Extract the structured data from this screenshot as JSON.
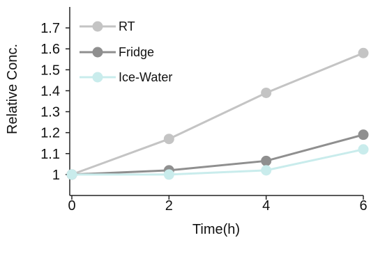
{
  "chart_data": {
    "type": "line",
    "title": "",
    "xlabel": "Time(h)",
    "ylabel": "Relative Conc.",
    "x": [
      0,
      2,
      4,
      6
    ],
    "xlim": [
      0,
      6
    ],
    "ylim": [
      0.9,
      1.8
    ],
    "xticks": [
      "0",
      "2",
      "4",
      "6"
    ],
    "yticks": [
      "1",
      "1.1",
      "1.2",
      "1.3",
      "1.4",
      "1.5",
      "1.6",
      "1.7"
    ],
    "grid": false,
    "legend_position": "top-left",
    "series": [
      {
        "name": "RT",
        "color": "#c4c4c4",
        "values": [
          1.0,
          1.17,
          1.39,
          1.58
        ]
      },
      {
        "name": "Fridge",
        "color": "#8f8f8f",
        "values": [
          1.0,
          1.02,
          1.065,
          1.19
        ]
      },
      {
        "name": "Ice-Water",
        "color": "#c9ecec",
        "values": [
          1.0,
          1.0,
          1.02,
          1.12
        ]
      }
    ]
  }
}
